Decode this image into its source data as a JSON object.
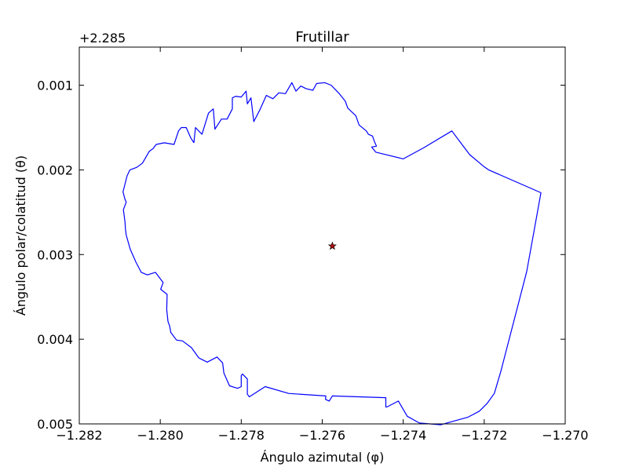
{
  "chart_data": {
    "type": "line",
    "title": "Frutillar",
    "xlabel": "Ángulo azimutal (φ)",
    "ylabel": "Ángulo polar/colatitud (θ)",
    "y_offset_label": "+2.285",
    "xlim": [
      -1.282,
      -1.27
    ],
    "ylim": [
      0.00055,
      0.005
    ],
    "y_inverted": true,
    "grid": false,
    "x_ticks": [
      -1.282,
      -1.28,
      -1.278,
      -1.276,
      -1.274,
      -1.272,
      -1.27
    ],
    "x_tick_labels": [
      "−1.282",
      "−1.280",
      "−1.278",
      "−1.276",
      "−1.274",
      "−1.272",
      "−1.270"
    ],
    "y_ticks": [
      0.001,
      0.002,
      0.003,
      0.004,
      0.005
    ],
    "y_tick_labels": [
      "0.001",
      "0.002",
      "0.003",
      "0.004",
      "0.005"
    ],
    "colors": {
      "boundary": "#0000ff",
      "marker_fill": "#aa1111",
      "marker_edge": "#000000"
    },
    "series": [
      {
        "style": "line",
        "x": [
          -1.27917,
          -1.27913,
          -1.27897,
          -1.27881,
          -1.27869,
          -1.27865,
          -1.27849,
          -1.27835,
          -1.27822,
          -1.27822,
          -1.27814,
          -1.278,
          -1.27788,
          -1.27785,
          -1.27776,
          -1.27769,
          -1.27754,
          -1.27738,
          -1.27722,
          -1.27707,
          -1.27691,
          -1.27675,
          -1.27665,
          -1.27653,
          -1.2764,
          -1.27623,
          -1.27614,
          -1.27594,
          -1.27578,
          -1.27568,
          -1.27558,
          -1.27543,
          -1.27537,
          -1.27517,
          -1.27509,
          -1.27491,
          -1.27486,
          -1.27476,
          -1.2747,
          -1.27466,
          -1.27478,
          -1.27468,
          -1.274,
          -1.2735,
          -1.2728,
          -1.27255,
          -1.27236,
          -1.27201,
          -1.27189,
          -1.2706,
          -1.27095,
          -1.27159,
          -1.27175,
          -1.27193,
          -1.27212,
          -1.2724,
          -1.2727,
          -1.27307,
          -1.2736,
          -1.2739,
          -1.27412,
          -1.2744,
          -1.27443,
          -1.27443,
          -1.27575,
          -1.27583,
          -1.27592,
          -1.27591,
          -1.27683,
          -1.27741,
          -1.2778,
          -1.27785,
          -1.27785,
          -1.27797,
          -1.278,
          -1.278,
          -1.27809,
          -1.27829,
          -1.27843,
          -1.27846,
          -1.2786,
          -1.27884,
          -1.27905,
          -1.27923,
          -1.27945,
          -1.2796,
          -1.27974,
          -1.27977,
          -1.27981,
          -1.27984,
          -1.27983,
          -1.27999,
          -1.27993,
          -1.28012,
          -1.28032,
          -1.28047,
          -1.2806,
          -1.28074,
          -1.28084,
          -1.28086,
          -1.28087,
          -1.28091,
          -1.28084,
          -1.28087,
          -1.28092,
          -1.28082,
          -1.28075,
          -1.28058,
          -1.28044,
          -1.28027,
          -1.28018,
          -1.2801,
          -1.2799,
          -1.27966,
          -1.27955,
          -1.27948,
          -1.27936,
          -1.27925,
          -1.27917
        ],
        "y": [
          0.00168,
          0.0015,
          0.00158,
          0.00133,
          0.00128,
          0.00152,
          0.0014,
          0.0014,
          0.00128,
          0.00115,
          0.00113,
          0.00114,
          0.00107,
          0.00122,
          0.00115,
          0.00143,
          0.00129,
          0.00112,
          0.00116,
          0.00109,
          0.0011,
          0.00097,
          0.00107,
          0.00101,
          0.00104,
          0.00106,
          0.00098,
          0.00097,
          0.001,
          0.00105,
          0.0011,
          0.00119,
          0.00127,
          0.00136,
          0.00147,
          0.00154,
          0.00158,
          0.0016,
          0.00168,
          0.00172,
          0.00173,
          0.00179,
          0.00187,
          0.00174,
          0.00154,
          0.0017,
          0.00182,
          0.00196,
          0.002,
          0.00227,
          0.0032,
          0.00438,
          0.00464,
          0.00476,
          0.00485,
          0.00492,
          0.00496,
          0.00501,
          0.00499,
          0.00491,
          0.00473,
          0.0048,
          0.0048,
          0.00469,
          0.00467,
          0.00473,
          0.00471,
          0.00467,
          0.00464,
          0.00456,
          0.00468,
          0.00465,
          0.00447,
          0.00441,
          0.00443,
          0.00456,
          0.00458,
          0.00455,
          0.0044,
          0.00428,
          0.00421,
          0.00427,
          0.00422,
          0.0041,
          0.00402,
          0.00401,
          0.00392,
          0.00384,
          0.00379,
          0.00365,
          0.00347,
          0.00341,
          0.00333,
          0.00321,
          0.00324,
          0.00321,
          0.00309,
          0.00294,
          0.00277,
          0.0027,
          0.00262,
          0.00247,
          0.00238,
          0.00235,
          0.00226,
          0.00207,
          0.002,
          0.00197,
          0.00192,
          0.00178,
          0.00175,
          0.0017,
          0.00168,
          0.0017,
          0.00154,
          0.0015,
          0.0015,
          0.00162,
          0.00168
        ]
      },
      {
        "style": "star-marker",
        "x": [
          -1.27575
        ],
        "y": [
          0.0029
        ]
      }
    ]
  }
}
